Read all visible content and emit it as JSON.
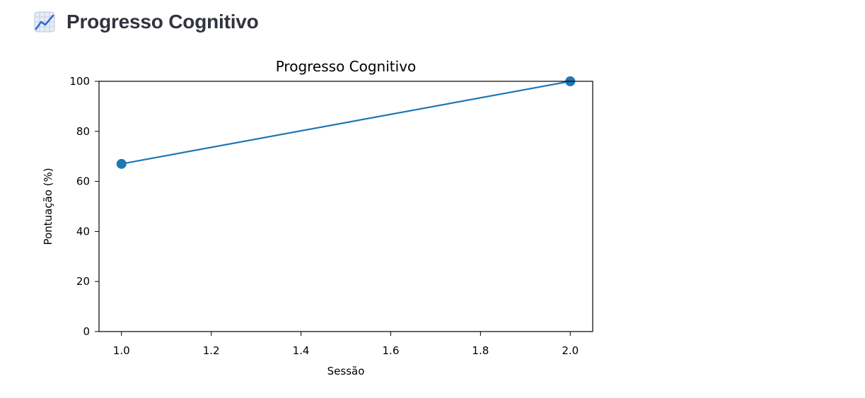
{
  "header": {
    "icon": "chart-increasing-icon",
    "title": "Progresso Cognitivo"
  },
  "chart_data": {
    "type": "line",
    "title": "Progresso Cognitivo",
    "xlabel": "Sessão",
    "ylabel": "Pontuação (%)",
    "x": [
      1.0,
      2.0
    ],
    "series": [
      {
        "values": [
          67,
          100
        ],
        "color": "#1f77b4",
        "marker": "circle"
      }
    ],
    "xlim": [
      0.95,
      2.05
    ],
    "ylim": [
      0,
      100
    ],
    "xticks": [
      1.0,
      1.2,
      1.4,
      1.6,
      1.8,
      2.0
    ],
    "xtick_labels": [
      "1.0",
      "1.2",
      "1.4",
      "1.6",
      "1.8",
      "2.0"
    ],
    "yticks": [
      0,
      20,
      40,
      60,
      80,
      100
    ],
    "ytick_labels": [
      "0",
      "20",
      "40",
      "60",
      "80",
      "100"
    ],
    "grid": false,
    "legend": "none"
  }
}
